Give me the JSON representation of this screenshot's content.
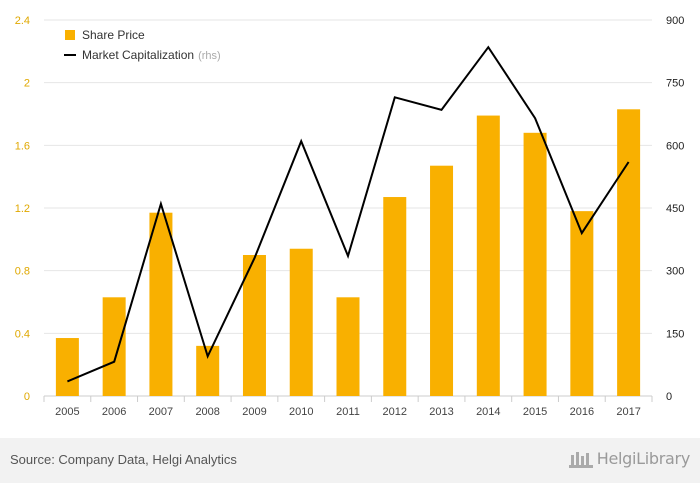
{
  "chart_data": {
    "type": "bar+line",
    "categories": [
      "2005",
      "2006",
      "2007",
      "2008",
      "2009",
      "2010",
      "2011",
      "2012",
      "2013",
      "2014",
      "2015",
      "2016",
      "2017"
    ],
    "series": [
      {
        "name": "Share Price",
        "type": "bar",
        "axis": "left",
        "color": "#f9b000",
        "values": [
          0.37,
          0.63,
          1.17,
          0.32,
          0.9,
          0.94,
          0.63,
          1.27,
          1.47,
          1.79,
          1.68,
          1.18,
          1.83
        ]
      },
      {
        "name": "Market Capitalization",
        "type": "line",
        "axis": "right",
        "color": "#000000",
        "values": [
          35,
          82,
          460,
          95,
          330,
          610,
          335,
          715,
          685,
          835,
          665,
          390,
          560
        ]
      }
    ],
    "ylim_left": [
      0,
      2.4
    ],
    "yticks_left": [
      "0",
      "0.4",
      "0.8",
      "1.2",
      "1.6",
      "2",
      "2.4"
    ],
    "ylim_right": [
      0,
      900
    ],
    "yticks_right": [
      "0",
      "150",
      "300",
      "450",
      "600",
      "750",
      "900"
    ],
    "grid": true,
    "legend_position": "top-left"
  },
  "legend": {
    "share_price": "Share Price",
    "market_cap": "Market Capitalization",
    "rhs": "(rhs)"
  },
  "footer": {
    "source": "Source: Company Data, Helgi Analytics",
    "logo": "HelgiLibrary"
  }
}
